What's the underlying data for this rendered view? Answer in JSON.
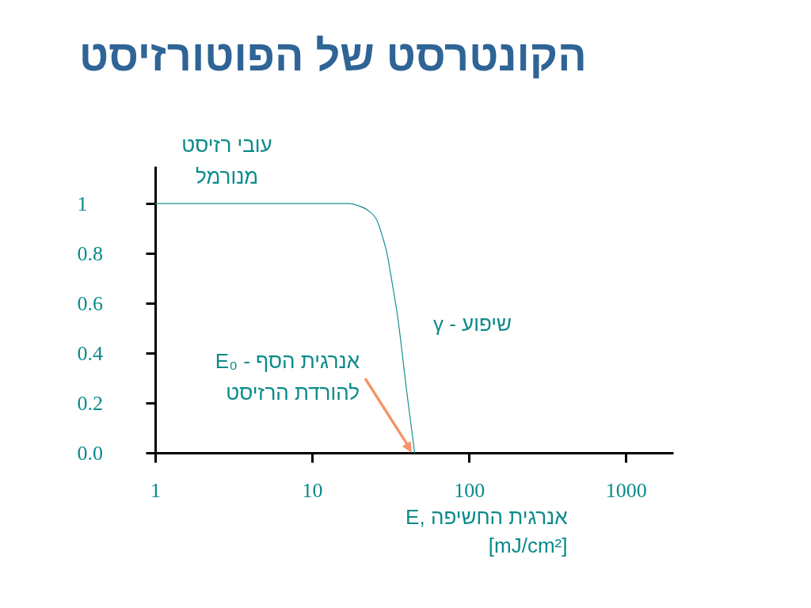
{
  "chart_data": {
    "type": "line",
    "title": "הקונטרסט של הפוטורזיסט",
    "xlabel": "E, אנרגית החשיפה\n[mJ/cm²]",
    "ylabel": "עובי רזיסט\nמנורמל",
    "x": [
      1,
      5,
      10,
      17,
      20,
      23,
      26,
      28,
      30,
      32,
      35,
      40,
      45
    ],
    "series": [
      {
        "color": "#1a9090",
        "values": [
          1,
          1,
          1,
          1,
          0.99,
          0.97,
          0.93,
          0.87,
          0.8,
          0.7,
          0.55,
          0.25,
          0
        ]
      }
    ],
    "log": "x",
    "xlim": [
      1,
      2000
    ],
    "xticks": [
      1,
      10,
      100,
      1000
    ],
    "ylim": [
      0,
      1.15
    ],
    "yticks": [
      {
        "value": 0,
        "label": "0.0"
      },
      0.2,
      0.4,
      0.6,
      0.8,
      1
    ],
    "grid": false,
    "marker": "none",
    "line_style": "solid",
    "annotations": [
      "γ - שיפוע",
      "E₀ - אנרגית הסף\nלהורדת הרזיסט"
    ]
  }
}
